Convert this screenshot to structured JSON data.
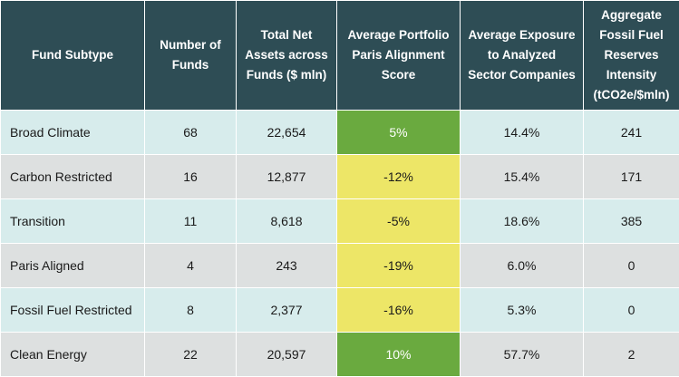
{
  "colors": {
    "header_bg": "#2e4d55",
    "row_light": "#d7ecec",
    "row_grey": "#dde0e0",
    "score_positive": "#6aaa3f",
    "score_negative": "#ede667"
  },
  "table": {
    "headers": [
      "Fund Subtype",
      "Number of Funds",
      "Total Net Assets across Funds ($ mln)",
      "Average Portfolio Paris Alignment Score",
      "Average Exposure to Analyzed Sector Companies",
      "Aggregate Fossil Fuel Reserves Intensity (tCO2e/$mln)"
    ],
    "rows": [
      {
        "subtype": "Broad Climate",
        "funds": "68",
        "assets": "22,654",
        "score": "5%",
        "score_tone": "positive",
        "exposure": "14.4%",
        "intensity": "241"
      },
      {
        "subtype": "Carbon Restricted",
        "funds": "16",
        "assets": "12,877",
        "score": "-12%",
        "score_tone": "negative",
        "exposure": "15.4%",
        "intensity": "171"
      },
      {
        "subtype": "Transition",
        "funds": "11",
        "assets": "8,618",
        "score": "-5%",
        "score_tone": "negative",
        "exposure": "18.6%",
        "intensity": "385"
      },
      {
        "subtype": "Paris Aligned",
        "funds": "4",
        "assets": "243",
        "score": "-19%",
        "score_tone": "negative",
        "exposure": "6.0%",
        "intensity": "0"
      },
      {
        "subtype": "Fossil Fuel Restricted",
        "funds": "8",
        "assets": "2,377",
        "score": "-16%",
        "score_tone": "negative",
        "exposure": "5.3%",
        "intensity": "0"
      },
      {
        "subtype": "Clean Energy",
        "funds": "22",
        "assets": "20,597",
        "score": "10%",
        "score_tone": "positive",
        "exposure": "57.7%",
        "intensity": "2"
      }
    ]
  }
}
